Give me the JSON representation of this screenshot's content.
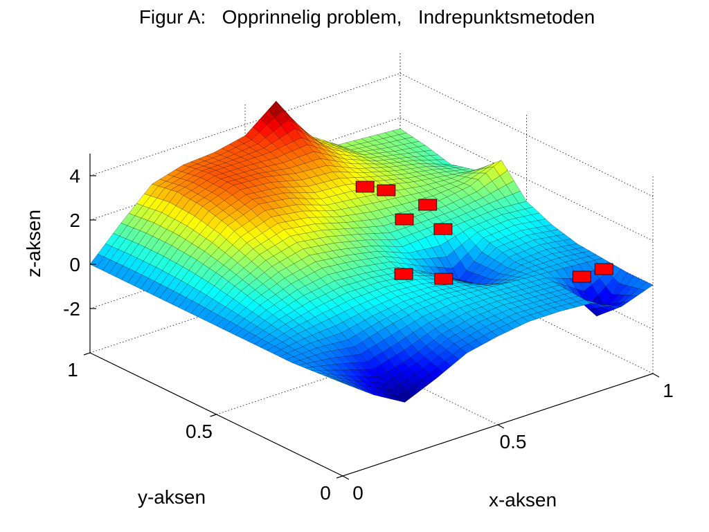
{
  "chart_data": {
    "type": "surface3d",
    "title": "Figur A:   Opprinnelig problem,   Indrepunktsmetoden",
    "x_label": "x-aksen",
    "y_label": "y-aksen",
    "z_label": "z-aksen",
    "xlim": [
      0,
      1
    ],
    "ylim": [
      0,
      1
    ],
    "zlim": [
      -4,
      5
    ],
    "xticks": [
      0,
      0.5,
      1
    ],
    "yticks": [
      0,
      0.5,
      1
    ],
    "zticks": [
      -2,
      0,
      2,
      4
    ],
    "grid": true,
    "colormap": "jet",
    "surface": {
      "x": [
        0,
        0.1,
        0.2,
        0.3,
        0.4,
        0.5,
        0.6,
        0.7,
        0.8,
        0.9,
        1
      ],
      "y": [
        0,
        0.1,
        0.2,
        0.3,
        0.4,
        0.5,
        0.6,
        0.7,
        0.8,
        0.9,
        1
      ],
      "z": [
        [
          0.2,
          -0.8,
          -1.6,
          -1.0,
          -0.3,
          0.0,
          0.2,
          0.2,
          0.1,
          -0.5,
          0.0
        ],
        [
          0.1,
          -0.5,
          -1.0,
          -0.6,
          0.0,
          0.3,
          0.4,
          0.3,
          0.2,
          -1.5,
          0.0
        ],
        [
          0.0,
          0.0,
          -0.2,
          0.2,
          0.5,
          0.6,
          0.5,
          0.4,
          0.3,
          0.2,
          0.1
        ],
        [
          0.0,
          0.3,
          0.5,
          0.7,
          0.8,
          0.7,
          0.4,
          -0.3,
          0.3,
          0.4,
          0.2
        ],
        [
          0.0,
          0.6,
          1.0,
          1.2,
          1.1,
          0.9,
          0.2,
          -0.6,
          0.6,
          0.7,
          0.5
        ],
        [
          0.0,
          0.9,
          1.5,
          1.8,
          1.6,
          1.3,
          0.8,
          0.9,
          1.0,
          1.1,
          1.0
        ],
        [
          0.0,
          1.2,
          2.0,
          2.4,
          2.2,
          1.8,
          1.5,
          1.4,
          1.4,
          1.6,
          2.3
        ],
        [
          0.0,
          1.4,
          2.5,
          3.0,
          2.8,
          2.3,
          2.2,
          2.0,
          1.7,
          1.5,
          1.3
        ],
        [
          0.0,
          1.5,
          2.8,
          3.3,
          3.2,
          2.9,
          2.8,
          2.2,
          1.8,
          1.5,
          1.0
        ],
        [
          0.0,
          1.5,
          2.9,
          3.3,
          3.3,
          3.3,
          3.5,
          2.5,
          1.8,
          1.5,
          1.3
        ],
        [
          0.0,
          1.4,
          2.7,
          3.1,
          3.2,
          3.5,
          4.6,
          2.6,
          1.7,
          1.6,
          1.5
        ]
      ]
    },
    "markers": {
      "color": "#ff0000",
      "x": [
        0.616,
        0.643,
        0.709,
        0.694,
        0.73,
        0.608,
        0.666,
        0.896,
        0.925
      ],
      "y": [
        0.668,
        0.617,
        0.534,
        0.608,
        0.499,
        0.505,
        0.418,
        0.154,
        0.102
      ],
      "z": [
        2.5,
        2.5,
        2,
        1,
        1,
        -0.5,
        -0.5,
        0,
        0.5
      ]
    }
  }
}
